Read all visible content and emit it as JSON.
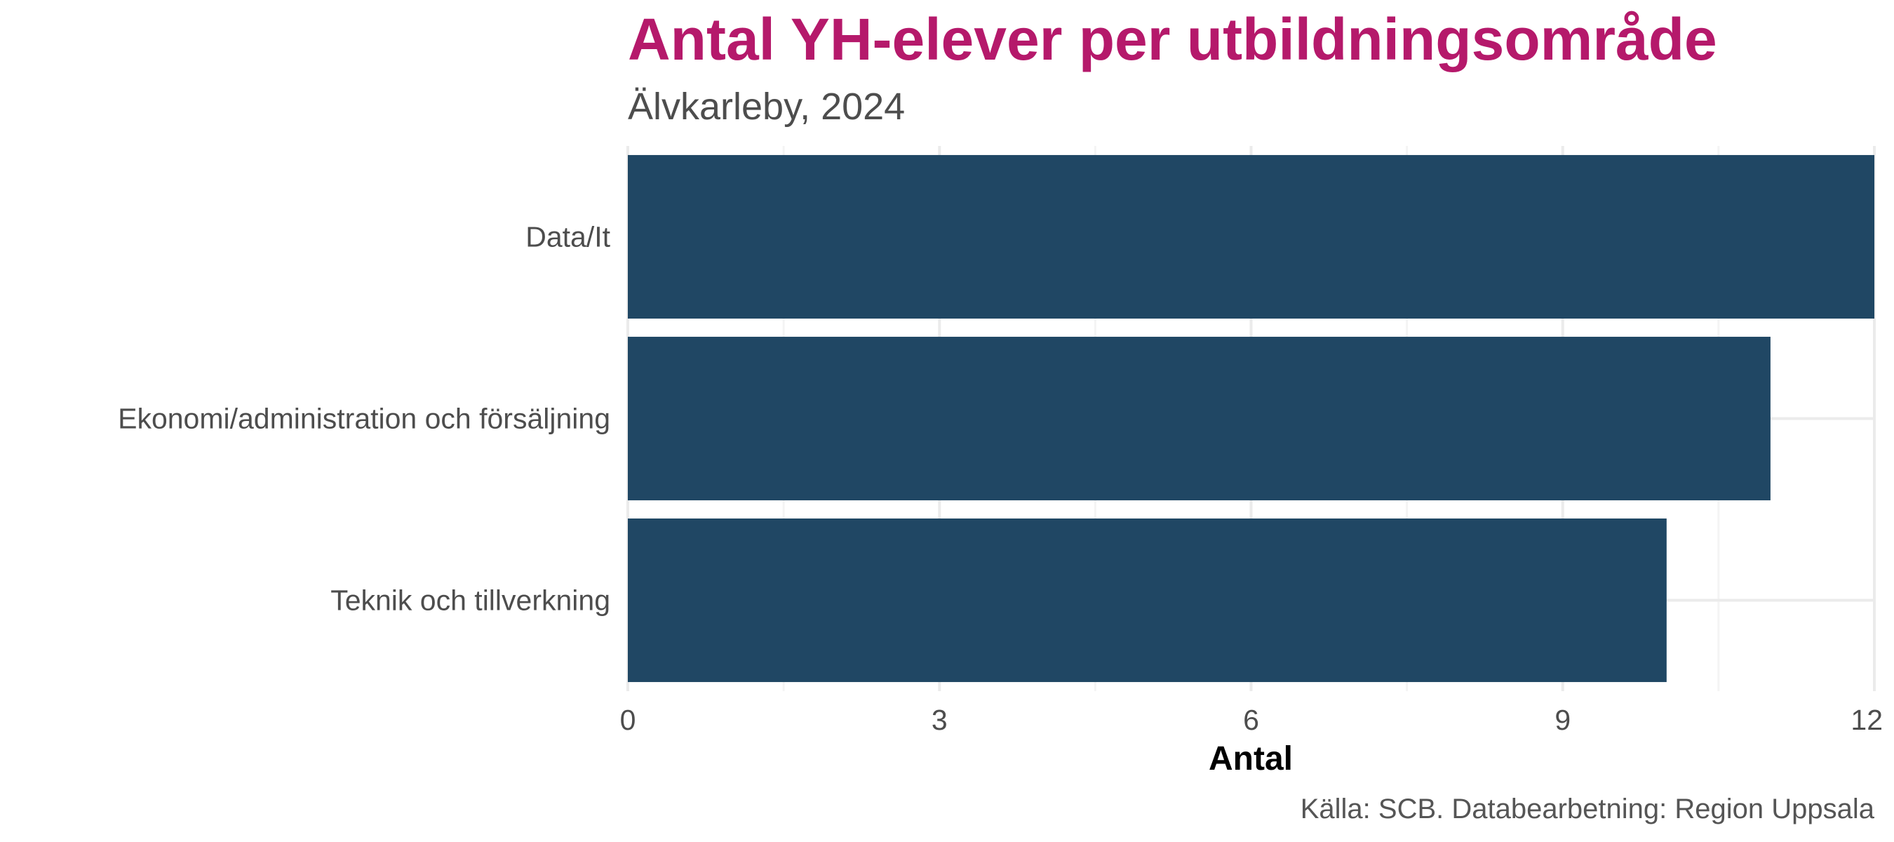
{
  "colors": {
    "title": "#b5196b",
    "bar": "#204764",
    "grid_major": "#ebebeb",
    "grid_minor": "#f4f4f4"
  },
  "chart_data": {
    "type": "bar",
    "orientation": "horizontal",
    "title": "Antal YH-elever per utbildningsområde",
    "subtitle": "Älvkarleby, 2024",
    "categories": [
      "Data/It",
      "Ekonomi/administration och försäljning",
      "Teknik och tillverkning"
    ],
    "values": [
      12,
      11,
      10
    ],
    "xlabel": "Antal",
    "ylabel": "",
    "xlim": [
      0,
      12
    ],
    "xticks": [
      0,
      3,
      6,
      9,
      12
    ],
    "grid": true,
    "legend": "none",
    "caption": "Källa: SCB. Databearbetning: Region Uppsala"
  }
}
